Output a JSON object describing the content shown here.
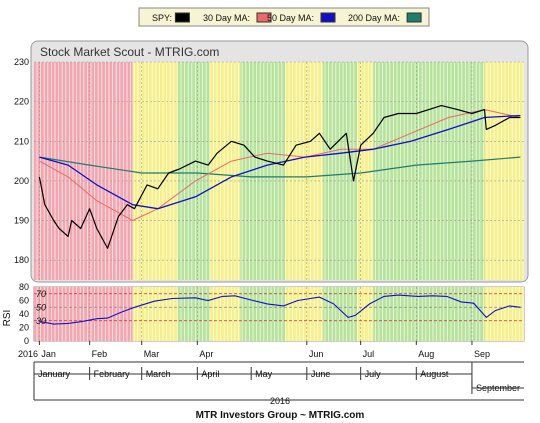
{
  "chart_data": [
    {
      "type": "line",
      "title": "Stock Market Scout - MTRIG.com",
      "legend": {
        "placement": "top-center",
        "items": [
          {
            "name": "SPY:",
            "color": "#000000"
          },
          {
            "name": "30 Day MA:",
            "color": "#e86a6a"
          },
          {
            "name": "50 Day MA:",
            "color": "#1010c8"
          },
          {
            "name": "200 Day MA:",
            "color": "#1e7d6e"
          }
        ]
      },
      "ylim": [
        175,
        230
      ],
      "yticks": [
        180,
        190,
        200,
        210,
        220,
        230
      ],
      "x_range": [
        "2016-01-01",
        "2016-09-30"
      ],
      "month_ticks": [
        {
          "label": "Jan",
          "date": "2016-01-04"
        },
        {
          "label": "Feb",
          "date": "2016-02-01"
        },
        {
          "label": "Mar",
          "date": "2016-03-01"
        },
        {
          "label": "Apr",
          "date": "2016-04-01"
        },
        {
          "label": "Jun",
          "date": "2016-06-01"
        },
        {
          "label": "Jul",
          "date": "2016-07-01"
        },
        {
          "label": "Aug",
          "date": "2016-08-01"
        },
        {
          "label": "Sep",
          "date": "2016-09-01"
        }
      ],
      "year_label": "2016",
      "grid": true,
      "signal_bands": {
        "description_colors": {
          "red": "#f4a6b0",
          "yellow": "#f6f08a",
          "green": "#b6e29a"
        },
        "segments": [
          {
            "from": "2016-01-01",
            "to": "2016-02-25",
            "color": "red"
          },
          {
            "from": "2016-02-25",
            "to": "2016-03-21",
            "color": "yellow"
          },
          {
            "from": "2016-03-21",
            "to": "2016-04-08",
            "color": "green"
          },
          {
            "from": "2016-04-08",
            "to": "2016-04-25",
            "color": "yellow"
          },
          {
            "from": "2016-04-25",
            "to": "2016-05-20",
            "color": "green"
          },
          {
            "from": "2016-05-20",
            "to": "2016-06-10",
            "color": "yellow"
          },
          {
            "from": "2016-06-10",
            "to": "2016-06-29",
            "color": "green"
          },
          {
            "from": "2016-06-29",
            "to": "2016-07-08",
            "color": "yellow"
          },
          {
            "from": "2016-07-08",
            "to": "2016-09-08",
            "color": "green"
          },
          {
            "from": "2016-09-08",
            "to": "2016-09-30",
            "color": "yellow"
          }
        ]
      },
      "series": [
        {
          "name": "SPY:",
          "color": "#000000",
          "points": [
            [
              "2016-01-04",
              201
            ],
            [
              "2016-01-07",
              194
            ],
            [
              "2016-01-12",
              190
            ],
            [
              "2016-01-15",
              188
            ],
            [
              "2016-01-20",
              186
            ],
            [
              "2016-01-22",
              190
            ],
            [
              "2016-01-27",
              188
            ],
            [
              "2016-02-01",
              193
            ],
            [
              "2016-02-05",
              188
            ],
            [
              "2016-02-11",
              183
            ],
            [
              "2016-02-17",
              191
            ],
            [
              "2016-02-22",
              194
            ],
            [
              "2016-02-26",
              193
            ],
            [
              "2016-03-04",
              199
            ],
            [
              "2016-03-10",
              198
            ],
            [
              "2016-03-16",
              202
            ],
            [
              "2016-03-22",
              203
            ],
            [
              "2016-03-31",
              205
            ],
            [
              "2016-04-07",
              204
            ],
            [
              "2016-04-12",
              207
            ],
            [
              "2016-04-20",
              210
            ],
            [
              "2016-04-27",
              209
            ],
            [
              "2016-05-03",
              206
            ],
            [
              "2016-05-10",
              205
            ],
            [
              "2016-05-19",
              204
            ],
            [
              "2016-05-26",
              209
            ],
            [
              "2016-06-03",
              210
            ],
            [
              "2016-06-08",
              212
            ],
            [
              "2016-06-14",
              208
            ],
            [
              "2016-06-23",
              212
            ],
            [
              "2016-06-27",
              200
            ],
            [
              "2016-07-01",
              209
            ],
            [
              "2016-07-08",
              212
            ],
            [
              "2016-07-14",
              216
            ],
            [
              "2016-07-22",
              217
            ],
            [
              "2016-08-01",
              217
            ],
            [
              "2016-08-08",
              218
            ],
            [
              "2016-08-15",
              219
            ],
            [
              "2016-08-24",
              218
            ],
            [
              "2016-09-01",
              217
            ],
            [
              "2016-09-08",
              218
            ],
            [
              "2016-09-09",
              213
            ],
            [
              "2016-09-14",
              214
            ],
            [
              "2016-09-22",
              216
            ],
            [
              "2016-09-28",
              216
            ]
          ]
        },
        {
          "name": "30 Day MA:",
          "color": "#e86a6a",
          "points": [
            [
              "2016-01-04",
              205
            ],
            [
              "2016-01-20",
              201
            ],
            [
              "2016-02-05",
              195
            ],
            [
              "2016-02-25",
              190
            ],
            [
              "2016-03-10",
              193
            ],
            [
              "2016-03-31",
              200
            ],
            [
              "2016-04-20",
              205
            ],
            [
              "2016-05-10",
              207
            ],
            [
              "2016-05-31",
              206
            ],
            [
              "2016-06-20",
              208
            ],
            [
              "2016-07-08",
              208
            ],
            [
              "2016-07-29",
              212
            ],
            [
              "2016-08-19",
              216
            ],
            [
              "2016-09-08",
              218
            ],
            [
              "2016-09-28",
              216
            ]
          ]
        },
        {
          "name": "50 Day MA:",
          "color": "#1010c8",
          "points": [
            [
              "2016-01-04",
              206
            ],
            [
              "2016-01-20",
              204
            ],
            [
              "2016-02-05",
              199
            ],
            [
              "2016-02-25",
              194
            ],
            [
              "2016-03-10",
              193
            ],
            [
              "2016-03-31",
              196
            ],
            [
              "2016-04-20",
              201
            ],
            [
              "2016-05-10",
              204
            ],
            [
              "2016-05-31",
              206
            ],
            [
              "2016-06-20",
              207
            ],
            [
              "2016-07-08",
              208
            ],
            [
              "2016-07-29",
              210
            ],
            [
              "2016-08-19",
              213
            ],
            [
              "2016-09-08",
              216
            ],
            [
              "2016-09-28",
              216.5
            ]
          ]
        },
        {
          "name": "200 Day MA:",
          "color": "#1e7d6e",
          "points": [
            [
              "2016-01-04",
              206
            ],
            [
              "2016-02-01",
              204
            ],
            [
              "2016-03-01",
              202
            ],
            [
              "2016-04-01",
              202
            ],
            [
              "2016-05-01",
              201
            ],
            [
              "2016-06-01",
              201
            ],
            [
              "2016-07-01",
              202
            ],
            [
              "2016-08-01",
              204
            ],
            [
              "2016-09-01",
              205
            ],
            [
              "2016-09-28",
              206
            ]
          ]
        }
      ]
    },
    {
      "type": "line",
      "ylabel": "RSI",
      "ylim": [
        0,
        80
      ],
      "yticks": [
        0,
        20,
        40,
        60,
        80
      ],
      "reference_lines": [
        {
          "value": 70,
          "label": "70"
        },
        {
          "value": 50,
          "label": "50"
        },
        {
          "value": 30,
          "label": "30"
        }
      ],
      "series": [
        {
          "name": "RSI",
          "color": "#1010c8",
          "points": [
            [
              "2016-01-04",
              29
            ],
            [
              "2016-01-12",
              25
            ],
            [
              "2016-01-20",
              26
            ],
            [
              "2016-01-28",
              29
            ],
            [
              "2016-02-05",
              33
            ],
            [
              "2016-02-11",
              34
            ],
            [
              "2016-02-18",
              42
            ],
            [
              "2016-02-26",
              50
            ],
            [
              "2016-03-08",
              59
            ],
            [
              "2016-03-18",
              63
            ],
            [
              "2016-03-31",
              64
            ],
            [
              "2016-04-07",
              60
            ],
            [
              "2016-04-15",
              66
            ],
            [
              "2016-04-22",
              67
            ],
            [
              "2016-05-02",
              60
            ],
            [
              "2016-05-10",
              55
            ],
            [
              "2016-05-19",
              52
            ],
            [
              "2016-05-27",
              60
            ],
            [
              "2016-06-08",
              65
            ],
            [
              "2016-06-16",
              55
            ],
            [
              "2016-06-24",
              35
            ],
            [
              "2016-06-28",
              38
            ],
            [
              "2016-07-06",
              55
            ],
            [
              "2016-07-14",
              66
            ],
            [
              "2016-07-22",
              68
            ],
            [
              "2016-08-02",
              66
            ],
            [
              "2016-08-10",
              67
            ],
            [
              "2016-08-18",
              66
            ],
            [
              "2016-08-26",
              58
            ],
            [
              "2016-09-02",
              56
            ],
            [
              "2016-09-09",
              35
            ],
            [
              "2016-09-14",
              45
            ],
            [
              "2016-09-22",
              52
            ],
            [
              "2016-09-28",
              50
            ]
          ]
        }
      ]
    }
  ],
  "timeline": {
    "months": [
      "January",
      "February",
      "March",
      "April",
      "May",
      "June",
      "July",
      "August",
      "September"
    ],
    "year": "2016"
  },
  "footer": {
    "credit": "MTR Investors Group ~ MTRIG.com"
  }
}
